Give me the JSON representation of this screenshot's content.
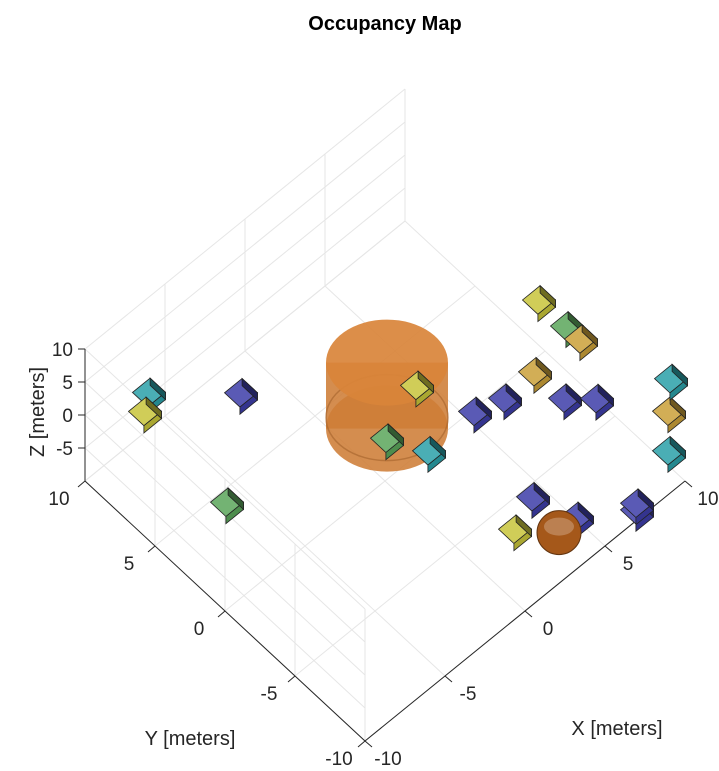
{
  "chart_data": {
    "type": "scatter3d",
    "title": "Occupancy Map",
    "xlabel": "X [meters]",
    "ylabel": "Y [meters]",
    "zlabel": "Z [meters]",
    "xlim": [
      -10,
      10
    ],
    "ylim": [
      -10,
      10
    ],
    "zlim": [
      -10,
      10
    ],
    "x_ticks": [
      "-10",
      "-5",
      "0",
      "5",
      "10"
    ],
    "y_ticks": [
      "-10",
      "-5",
      "0",
      "5",
      "10"
    ],
    "z_ticks": [
      "-5",
      "0",
      "5",
      "10"
    ],
    "grid": true,
    "colors": {
      "navy": "#3d3da8",
      "yellow": "#c8c43a",
      "green": "#5aa65a",
      "teal": "#2aa0a8",
      "gold": "#caa038",
      "cylinder": "#d9843a",
      "sphere": "#a5581a",
      "path": "#ff0000"
    },
    "obstacles": [
      {
        "x": -8,
        "y": 8,
        "z": 0,
        "color": "yellow"
      },
      {
        "x": -6,
        "y": 10,
        "z": -5,
        "color": "teal"
      },
      {
        "x": -9,
        "y": 1,
        "z": 2,
        "color": "green"
      },
      {
        "x": 7,
        "y": -3,
        "z": 9,
        "color": "yellow"
      },
      {
        "x": 7,
        "y": -5,
        "z": 9,
        "color": "green"
      },
      {
        "x": 7,
        "y": -6,
        "z": 9,
        "color": "gold"
      },
      {
        "x": 5,
        "y": -5,
        "z": 6,
        "color": "gold"
      },
      {
        "x": 4,
        "y": -4,
        "z": 2,
        "color": "navy"
      },
      {
        "x": 6,
        "y": -6,
        "z": 2,
        "color": "navy"
      },
      {
        "x": 3,
        "y": -3,
        "z": 0,
        "color": "navy"
      },
      {
        "x": 2,
        "y": 0,
        "z": 0,
        "color": "yellow"
      },
      {
        "x": 1,
        "y": -2,
        "z": -4,
        "color": "teal"
      },
      {
        "x": 1,
        "y": 1,
        "z": -8,
        "color": "green"
      },
      {
        "x": 2,
        "y": -7,
        "z": -8,
        "color": "yellow"
      },
      {
        "x": 4,
        "y": -6,
        "z": -9,
        "color": "navy"
      },
      {
        "x": 8,
        "y": -6,
        "z": -2,
        "color": "navy"
      },
      {
        "x": 10,
        "y": -9,
        "z": 3,
        "color": "teal"
      },
      {
        "x": 9,
        "y": -10,
        "z": 2,
        "color": "gold"
      },
      {
        "x": 9,
        "y": -10,
        "z": -4,
        "color": "teal"
      },
      {
        "x": 7,
        "y": -10,
        "z": -8,
        "color": "navy"
      },
      {
        "x": 7,
        "y": -10,
        "z": -9,
        "color": "navy"
      },
      {
        "x": -2,
        "y": 8,
        "z": -9,
        "color": "navy"
      },
      {
        "x": 5,
        "y": -8,
        "z": -10,
        "color": "navy"
      }
    ],
    "cylinder": {
      "x": 1,
      "y": 1,
      "radius": 4,
      "zmin": -6,
      "zmax": 4
    },
    "sphere": {
      "x": 3,
      "y": -9,
      "z": -6,
      "radius": 1.2
    },
    "path": [
      [
        3,
        -9,
        -6
      ],
      [
        4,
        -9,
        -9
      ]
    ]
  }
}
